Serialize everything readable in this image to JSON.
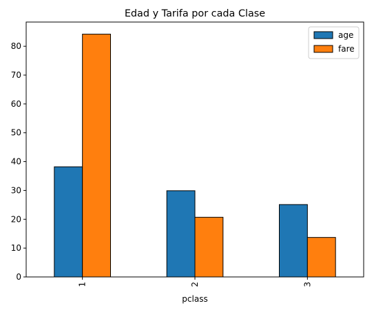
{
  "chart_data": {
    "type": "bar",
    "title": "Edad y Tarifa por cada Clase",
    "xlabel": "pclass",
    "ylabel": "",
    "categories": [
      "1",
      "2",
      "3"
    ],
    "series": [
      {
        "name": "age",
        "values": [
          38.2,
          29.9,
          25.1
        ],
        "color": "#1f77b4"
      },
      {
        "name": "fare",
        "values": [
          84.2,
          20.7,
          13.7
        ],
        "color": "#ff7f0e"
      }
    ],
    "ylim": [
      0,
      88.4
    ],
    "yticks": [
      0,
      10,
      20,
      30,
      40,
      50,
      60,
      70,
      80
    ],
    "grid": false,
    "legend_position": "top-right"
  }
}
